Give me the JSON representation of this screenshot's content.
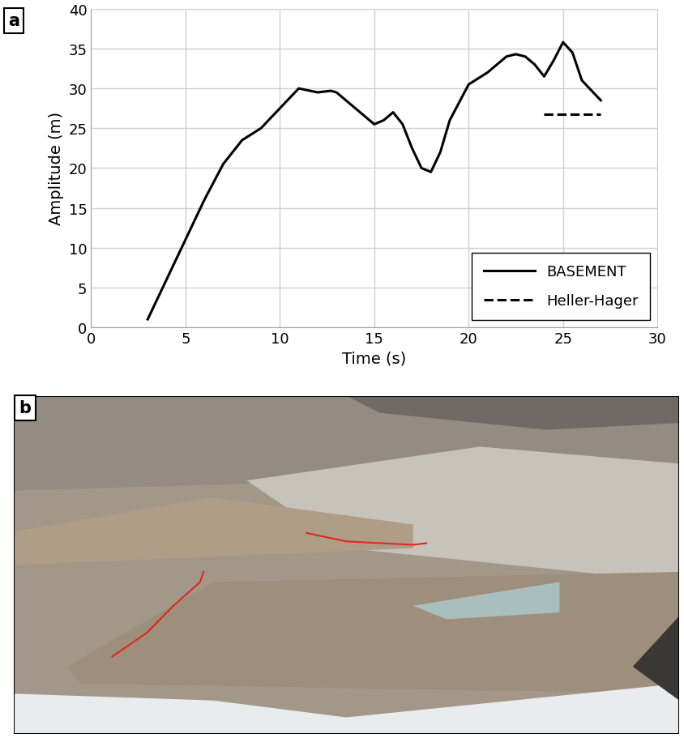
{
  "chart_data": {
    "type": "line",
    "panel_label": "a",
    "x_label": "Time (s)",
    "y_label": "Amplitude (m)",
    "xlim": [
      0,
      30
    ],
    "xticks": [
      0,
      5,
      10,
      15,
      20,
      25,
      30
    ],
    "ylim": [
      0,
      40
    ],
    "yticks": [
      0,
      5,
      10,
      15,
      20,
      25,
      30,
      35,
      40
    ],
    "grid": true,
    "legend": "lower right",
    "series": [
      {
        "name": "BASEMENT",
        "color": "#000000",
        "line_style": "solid",
        "x": [
          3,
          4,
          5,
          6,
          7,
          8,
          9,
          10,
          11,
          12,
          12.7,
          13,
          14,
          15,
          15.5,
          16,
          16.5,
          17,
          17.5,
          18,
          18.5,
          19,
          20,
          21,
          22,
          22.5,
          23,
          23.5,
          24,
          24.5,
          25,
          25.5,
          26,
          27
        ],
        "values": [
          1,
          6,
          11,
          16,
          20.5,
          23.5,
          25,
          27.5,
          30,
          29.5,
          29.7,
          29.5,
          27.5,
          25.5,
          26,
          27,
          25.5,
          22.5,
          20,
          19.5,
          22,
          26,
          30.5,
          32,
          34,
          34.3,
          34,
          33,
          31.5,
          33.5,
          35.8,
          34.5,
          31,
          28.5
        ]
      },
      {
        "name": "Heller-Hager",
        "color": "#000000",
        "line_style": "dashed",
        "x": [
          24,
          27
        ],
        "values": [
          26.8,
          26.8
        ]
      }
    ]
  },
  "photo": {
    "panel_label": "b"
  }
}
